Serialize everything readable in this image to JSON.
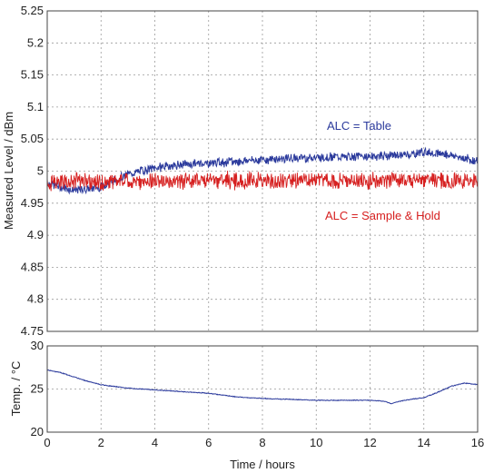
{
  "chart_data": [
    {
      "type": "line",
      "xlim": [
        0,
        16
      ],
      "ylim": [
        4.75,
        5.25
      ],
      "ylabel": "Measured Level / dBm",
      "y_ticks": [
        "4.75",
        "4.8",
        "4.85",
        "4.9",
        "4.95",
        "5",
        "5.05",
        "5.1",
        "5.15",
        "5.2",
        "5.25"
      ],
      "grid": true,
      "series": [
        {
          "name": "ALC = Table",
          "color": "#2b3a9c",
          "x": [
            0,
            0.5,
            1,
            1.5,
            2,
            2.5,
            3,
            3.5,
            4,
            4.5,
            5,
            5.5,
            6,
            6.5,
            7,
            7.5,
            8,
            8.5,
            9,
            9.5,
            10,
            10.5,
            11,
            11.5,
            12,
            12.5,
            13,
            13.5,
            14,
            14.5,
            15,
            15.5,
            16
          ],
          "values": [
            4.982,
            4.975,
            4.97,
            4.972,
            4.975,
            4.985,
            4.995,
            5.0,
            5.005,
            5.008,
            5.01,
            5.012,
            5.013,
            5.014,
            5.015,
            5.017,
            5.018,
            5.019,
            5.02,
            5.021,
            5.021,
            5.022,
            5.022,
            5.023,
            5.023,
            5.024,
            5.025,
            5.026,
            5.03,
            5.028,
            5.025,
            5.02,
            5.015
          ]
        },
        {
          "name": "ALC = Sample & Hold",
          "color": "#d62020",
          "x": [
            0,
            0.5,
            1,
            1.5,
            2,
            2.5,
            3,
            3.5,
            4,
            4.5,
            5,
            5.5,
            6,
            6.5,
            7,
            7.5,
            8,
            8.5,
            9,
            9.5,
            10,
            10.5,
            11,
            11.5,
            12,
            12.5,
            13,
            13.5,
            14,
            14.5,
            15,
            15.5,
            16
          ],
          "values": [
            4.982,
            4.984,
            4.985,
            4.983,
            4.982,
            4.983,
            4.985,
            4.984,
            4.985,
            4.984,
            4.985,
            4.986,
            4.985,
            4.984,
            4.985,
            4.986,
            4.985,
            4.984,
            4.985,
            4.986,
            4.985,
            4.984,
            4.985,
            4.985,
            4.984,
            4.985,
            4.986,
            4.985,
            4.984,
            4.985,
            4.985,
            4.984,
            4.984
          ]
        }
      ],
      "annotations": [
        {
          "text": "ALC = Table",
          "color": "#2b3a9c"
        },
        {
          "text": "ALC = Sample & Hold",
          "color": "#d62020"
        }
      ]
    },
    {
      "type": "line",
      "xlim": [
        0,
        16
      ],
      "ylim": [
        20,
        30
      ],
      "xlabel": "Time / hours",
      "ylabel": "Temp. / °C",
      "x_ticks": [
        "0",
        "2",
        "4",
        "6",
        "8",
        "10",
        "12",
        "14",
        "16"
      ],
      "y_ticks": [
        "20",
        "25",
        "30"
      ],
      "grid": true,
      "series": [
        {
          "color": "#2b3a9c",
          "x": [
            0,
            0.5,
            1,
            1.5,
            2,
            2.5,
            3,
            3.5,
            4,
            4.5,
            5,
            5.5,
            6,
            6.5,
            7,
            7.5,
            8,
            8.5,
            9,
            9.5,
            10,
            10.5,
            11,
            11.5,
            12,
            12.5,
            12.8,
            13,
            13.5,
            14,
            14.5,
            15,
            15.5,
            16
          ],
          "values": [
            27.2,
            26.9,
            26.4,
            25.9,
            25.5,
            25.3,
            25.1,
            25.0,
            24.9,
            24.8,
            24.7,
            24.6,
            24.5,
            24.3,
            24.1,
            24.0,
            23.9,
            23.85,
            23.8,
            23.75,
            23.7,
            23.7,
            23.7,
            23.7,
            23.7,
            23.6,
            23.3,
            23.5,
            23.8,
            24.0,
            24.6,
            25.3,
            25.7,
            25.5
          ]
        }
      ]
    }
  ]
}
